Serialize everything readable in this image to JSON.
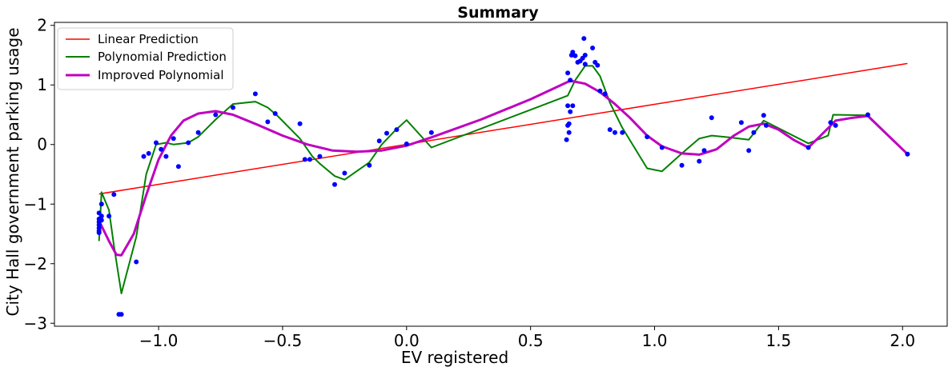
{
  "chart_data": {
    "type": "scatter",
    "title": "Summary",
    "xlabel": "EV registered",
    "ylabel": "City Hall government parking usage",
    "xlim": [
      -1.42,
      2.18
    ],
    "ylim": [
      -3.05,
      2.05
    ],
    "xticks": [
      -1.0,
      -0.5,
      0.0,
      0.5,
      1.0,
      1.5,
      2.0
    ],
    "xtick_labels": [
      "−1.0",
      "−0.5",
      "0.0",
      "0.5",
      "1.0",
      "1.5",
      "2.0"
    ],
    "yticks": [
      -3,
      -2,
      -1,
      0,
      1,
      2
    ],
    "ytick_labels": [
      "−3",
      "−2",
      "−1",
      "0",
      "1",
      "2"
    ],
    "grid": false,
    "legend_position": "top-left",
    "legend": [
      "Linear Prediction",
      "Polynomial Prediction",
      "Improved Polynomial"
    ],
    "colors": {
      "points": "#0000ff",
      "linear": "#ff0000",
      "polynomial": "#008000",
      "improved": "#bf00bf"
    },
    "points": [
      [
        -1.24,
        -1.3
      ],
      [
        -1.24,
        -1.35
      ],
      [
        -1.24,
        -1.4
      ],
      [
        -1.24,
        -1.45
      ],
      [
        -1.24,
        -1.48
      ],
      [
        -1.24,
        -1.15
      ],
      [
        -1.24,
        -1.25
      ],
      [
        -1.23,
        -1.2
      ],
      [
        -1.23,
        -1.27
      ],
      [
        -1.23,
        -1.0
      ],
      [
        -1.2,
        -1.2
      ],
      [
        -1.18,
        -0.84
      ],
      [
        -1.16,
        -2.85
      ],
      [
        -1.15,
        -2.85
      ],
      [
        -1.09,
        -1.97
      ],
      [
        -1.06,
        -0.2
      ],
      [
        -1.04,
        -0.15
      ],
      [
        -1.01,
        0.03
      ],
      [
        -0.99,
        -0.08
      ],
      [
        -0.97,
        -0.2
      ],
      [
        -0.94,
        0.1
      ],
      [
        -0.92,
        -0.37
      ],
      [
        -0.88,
        0.03
      ],
      [
        -0.84,
        0.2
      ],
      [
        -0.77,
        0.5
      ],
      [
        -0.7,
        0.62
      ],
      [
        -0.61,
        0.85
      ],
      [
        -0.56,
        0.38
      ],
      [
        -0.53,
        0.52
      ],
      [
        -0.43,
        0.35
      ],
      [
        -0.41,
        -0.25
      ],
      [
        -0.39,
        -0.25
      ],
      [
        -0.35,
        -0.2
      ],
      [
        -0.29,
        -0.67
      ],
      [
        -0.25,
        -0.48
      ],
      [
        -0.15,
        -0.35
      ],
      [
        -0.11,
        0.06
      ],
      [
        -0.08,
        0.19
      ],
      [
        -0.04,
        0.25
      ],
      [
        0.0,
        0.01
      ],
      [
        0.1,
        0.2
      ],
      [
        0.645,
        0.08
      ],
      [
        0.65,
        0.32
      ],
      [
        0.65,
        0.65
      ],
      [
        0.655,
        0.2
      ],
      [
        0.655,
        0.35
      ],
      [
        0.66,
        0.55
      ],
      [
        0.66,
        1.08
      ],
      [
        0.67,
        0.65
      ],
      [
        0.65,
        1.2
      ],
      [
        0.665,
        1.5
      ],
      [
        0.67,
        1.55
      ],
      [
        0.68,
        1.49
      ],
      [
        0.69,
        1.38
      ],
      [
        0.7,
        1.4
      ],
      [
        0.71,
        1.45
      ],
      [
        0.72,
        1.35
      ],
      [
        0.72,
        1.5
      ],
      [
        0.715,
        1.78
      ],
      [
        0.75,
        1.62
      ],
      [
        0.76,
        1.38
      ],
      [
        0.77,
        1.33
      ],
      [
        0.78,
        0.9
      ],
      [
        0.8,
        0.85
      ],
      [
        0.82,
        0.25
      ],
      [
        0.84,
        0.2
      ],
      [
        0.87,
        0.2
      ],
      [
        0.97,
        0.13
      ],
      [
        1.03,
        -0.05
      ],
      [
        1.11,
        -0.35
      ],
      [
        1.18,
        -0.28
      ],
      [
        1.2,
        -0.1
      ],
      [
        1.23,
        0.45
      ],
      [
        1.35,
        0.37
      ],
      [
        1.38,
        -0.1
      ],
      [
        1.4,
        0.2
      ],
      [
        1.44,
        0.49
      ],
      [
        1.45,
        0.32
      ],
      [
        1.62,
        -0.05
      ],
      [
        1.71,
        0.37
      ],
      [
        1.73,
        0.32
      ],
      [
        1.86,
        0.5
      ],
      [
        2.02,
        -0.16
      ]
    ],
    "linear_line": [
      [
        -1.24,
        -0.83
      ],
      [
        2.02,
        1.36
      ]
    ],
    "polynomial_line": [
      [
        -1.24,
        -1.62
      ],
      [
        -1.23,
        -0.8
      ],
      [
        -1.2,
        -1.1
      ],
      [
        -1.18,
        -1.7
      ],
      [
        -1.15,
        -2.5
      ],
      [
        -1.09,
        -1.55
      ],
      [
        -1.05,
        -0.5
      ],
      [
        -1.01,
        0.0
      ],
      [
        -0.97,
        0.03
      ],
      [
        -0.94,
        0.0
      ],
      [
        -0.88,
        0.03
      ],
      [
        -0.84,
        0.13
      ],
      [
        -0.77,
        0.42
      ],
      [
        -0.7,
        0.68
      ],
      [
        -0.61,
        0.72
      ],
      [
        -0.56,
        0.62
      ],
      [
        -0.52,
        0.48
      ],
      [
        -0.43,
        0.1
      ],
      [
        -0.38,
        -0.2
      ],
      [
        -0.35,
        -0.32
      ],
      [
        -0.29,
        -0.53
      ],
      [
        -0.25,
        -0.59
      ],
      [
        -0.15,
        -0.3
      ],
      [
        -0.1,
        0.0
      ],
      [
        -0.05,
        0.22
      ],
      [
        0.0,
        0.41
      ],
      [
        0.1,
        -0.05
      ],
      [
        0.65,
        0.82
      ],
      [
        0.68,
        1.08
      ],
      [
        0.72,
        1.32
      ],
      [
        0.75,
        1.32
      ],
      [
        0.78,
        1.15
      ],
      [
        0.82,
        0.7
      ],
      [
        0.87,
        0.28
      ],
      [
        0.97,
        -0.4
      ],
      [
        1.03,
        -0.45
      ],
      [
        1.11,
        -0.15
      ],
      [
        1.18,
        0.1
      ],
      [
        1.23,
        0.15
      ],
      [
        1.3,
        0.12
      ],
      [
        1.38,
        0.08
      ],
      [
        1.44,
        0.4
      ],
      [
        1.62,
        0.02
      ],
      [
        1.7,
        0.15
      ],
      [
        1.72,
        0.5
      ],
      [
        1.86,
        0.49
      ],
      [
        2.02,
        -0.16
      ]
    ],
    "improved_line": [
      [
        -1.24,
        -1.28
      ],
      [
        -1.2,
        -1.62
      ],
      [
        -1.17,
        -1.85
      ],
      [
        -1.15,
        -1.86
      ],
      [
        -1.1,
        -1.5
      ],
      [
        -1.05,
        -0.85
      ],
      [
        -1.0,
        -0.25
      ],
      [
        -0.95,
        0.15
      ],
      [
        -0.9,
        0.4
      ],
      [
        -0.84,
        0.52
      ],
      [
        -0.77,
        0.56
      ],
      [
        -0.7,
        0.5
      ],
      [
        -0.6,
        0.33
      ],
      [
        -0.5,
        0.15
      ],
      [
        -0.4,
        0.0
      ],
      [
        -0.3,
        -0.1
      ],
      [
        -0.2,
        -0.12
      ],
      [
        -0.1,
        -0.1
      ],
      [
        0.0,
        -0.02
      ],
      [
        0.1,
        0.12
      ],
      [
        0.3,
        0.42
      ],
      [
        0.5,
        0.76
      ],
      [
        0.66,
        1.07
      ],
      [
        0.72,
        1.02
      ],
      [
        0.78,
        0.88
      ],
      [
        0.84,
        0.68
      ],
      [
        0.9,
        0.45
      ],
      [
        0.97,
        0.15
      ],
      [
        1.03,
        -0.03
      ],
      [
        1.11,
        -0.15
      ],
      [
        1.18,
        -0.17
      ],
      [
        1.25,
        -0.08
      ],
      [
        1.32,
        0.15
      ],
      [
        1.38,
        0.3
      ],
      [
        1.44,
        0.35
      ],
      [
        1.5,
        0.25
      ],
      [
        1.56,
        0.08
      ],
      [
        1.62,
        -0.05
      ],
      [
        1.67,
        0.15
      ],
      [
        1.73,
        0.4
      ],
      [
        1.8,
        0.45
      ],
      [
        1.86,
        0.48
      ],
      [
        2.02,
        -0.16
      ]
    ]
  }
}
